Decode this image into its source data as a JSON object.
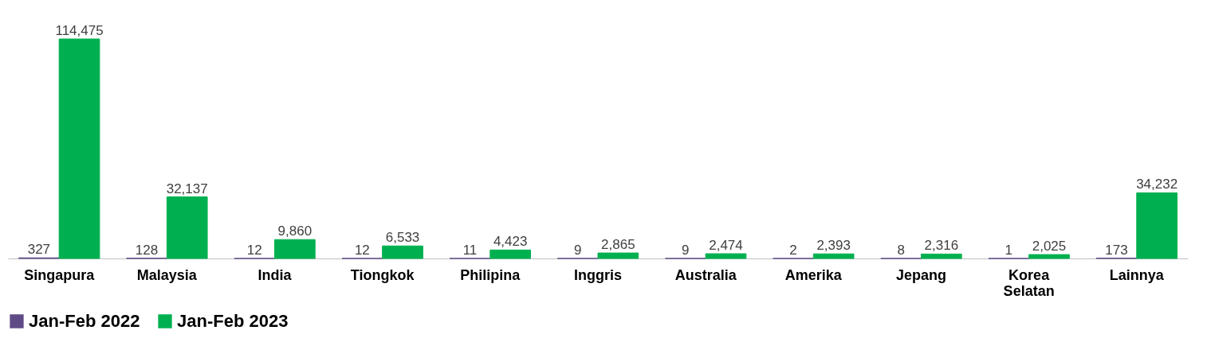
{
  "chart_data": {
    "type": "bar",
    "categories": [
      "Singapura",
      "Malaysia",
      "India",
      "Tiongkok",
      "Philipina",
      "Inggris",
      "Australia",
      "Amerika",
      "Jepang",
      "Korea Selatan",
      "Lainnya"
    ],
    "series": [
      {
        "name": "Jan-Feb 2022",
        "color": "#5e4b85",
        "values": [
          327,
          128,
          12,
          12,
          11,
          9,
          9,
          2,
          8,
          1,
          173
        ],
        "value_labels": [
          "327",
          "128",
          "12",
          "12",
          "11",
          "9",
          "9",
          "2",
          "8",
          "1",
          "173"
        ]
      },
      {
        "name": "Jan-Feb 2023",
        "color": "#00b050",
        "values": [
          114475,
          32137,
          9860,
          6533,
          4423,
          2865,
          2474,
          2393,
          2316,
          2025,
          34232
        ],
        "value_labels": [
          "114,475",
          "32,137",
          "9,860",
          "6,533",
          "4,423",
          "2,865",
          "2,474",
          "2,393",
          "2,316",
          "2,025",
          "34,232"
        ]
      }
    ],
    "legend": "bottom",
    "grid": false
  }
}
